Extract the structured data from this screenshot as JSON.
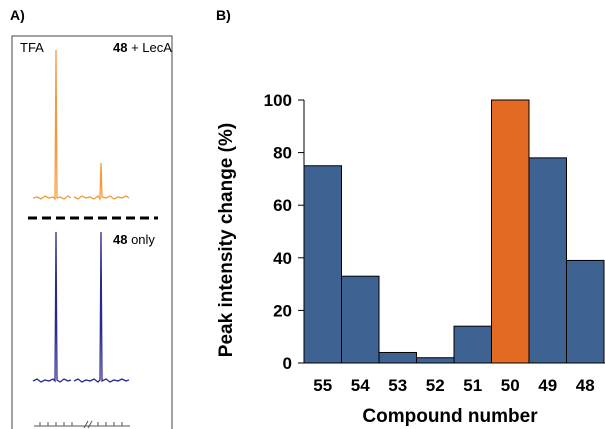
{
  "panel_a": {
    "letter": "A)",
    "trace_top_left_label": "TFA",
    "trace_top_right_bold": "48",
    "trace_top_right_rest": " + LecA",
    "trace_bottom_bold": "48",
    "trace_bottom_rest": " only",
    "colors": {
      "top_trace": "#f39a3c",
      "bottom_trace": "#2a2a8c",
      "frame": "#444444"
    }
  },
  "panel_b": {
    "letter": "B)"
  },
  "chart_data": {
    "type": "bar",
    "categories": [
      "55",
      "54",
      "53",
      "52",
      "51",
      "50",
      "49",
      "48"
    ],
    "values": [
      75,
      33,
      4,
      2,
      14,
      100,
      78,
      39
    ],
    "highlight_category": "50",
    "colors": {
      "default": "#3e6291",
      "highlight": "#e36a22"
    },
    "title": "",
    "xlabel": "Compound number",
    "ylabel": "Peak intensity change (%)",
    "ylim": [
      0,
      100
    ],
    "yticks": [
      0,
      20,
      40,
      60,
      80,
      100
    ],
    "grid": false,
    "legend": "none"
  }
}
